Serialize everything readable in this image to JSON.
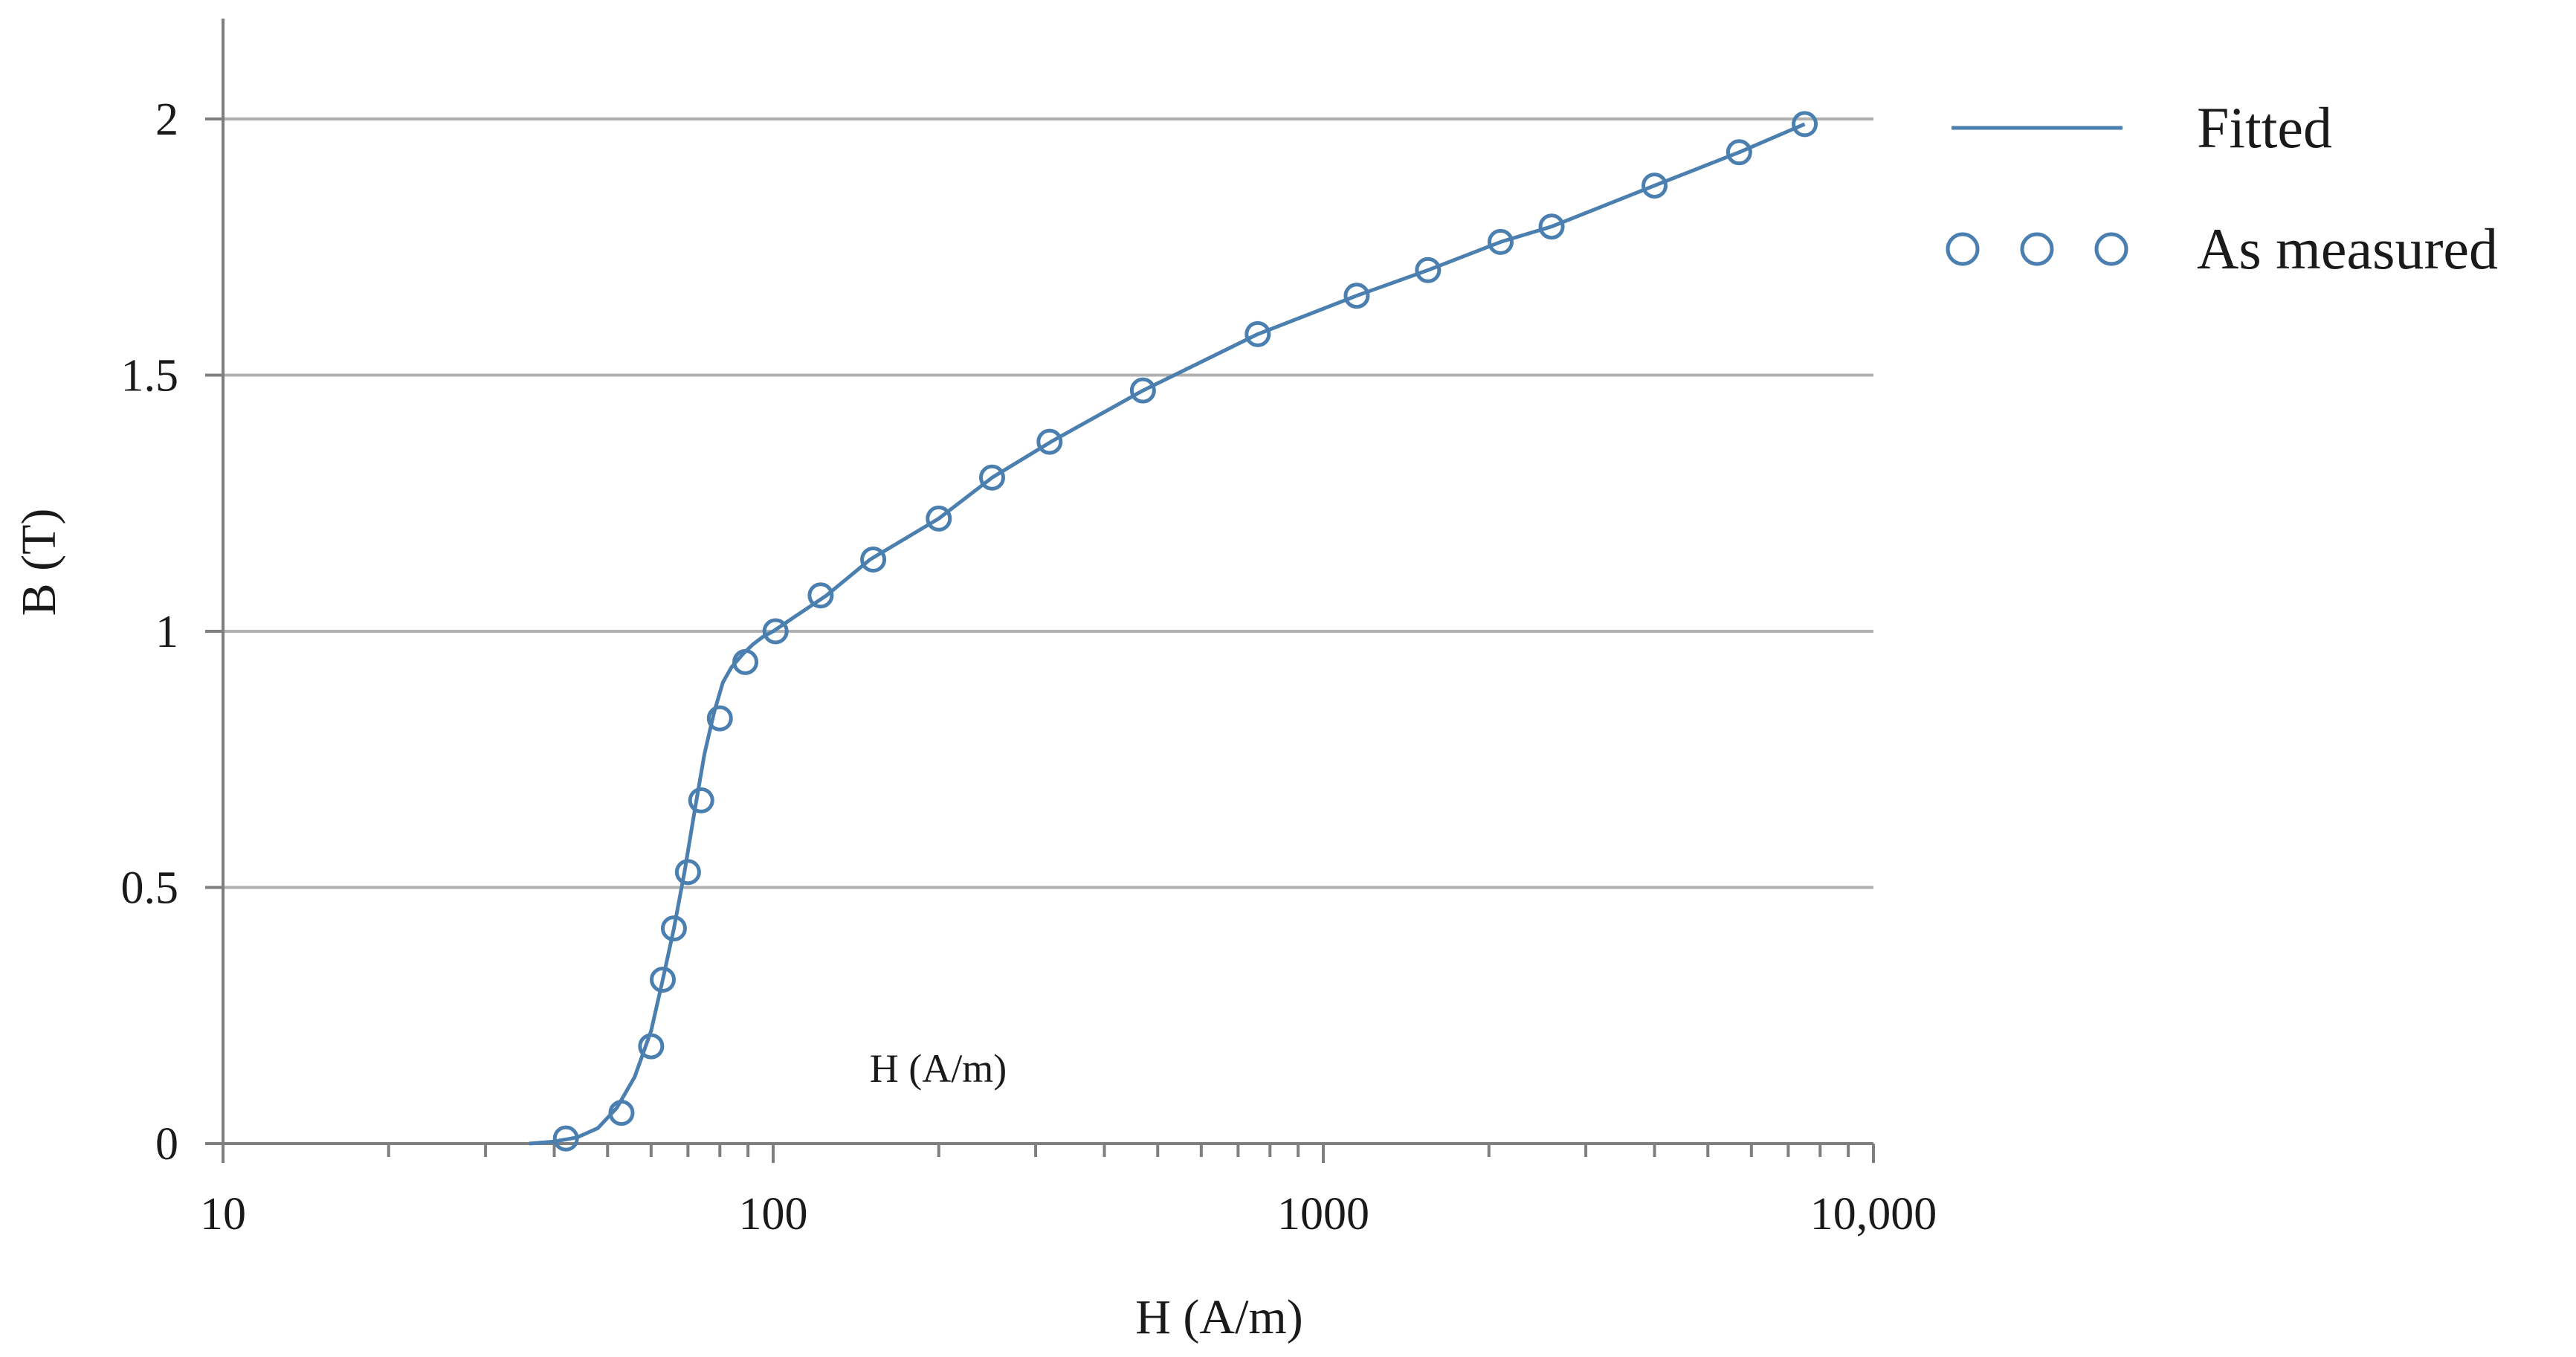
{
  "chart_data": {
    "type": "line",
    "xlabel": "H (A/m)",
    "ylabel": "B (T)",
    "x_scale": "log",
    "xlim": [
      10,
      10000
    ],
    "ylim": [
      0,
      2
    ],
    "x_ticks": [
      10,
      100,
      1000,
      10000
    ],
    "x_tick_labels": [
      "10",
      "100",
      "1000",
      "10,000"
    ],
    "y_ticks": [
      0,
      0.5,
      1,
      1.5,
      2
    ],
    "y_tick_labels": [
      "0",
      "0.5",
      "1",
      "1.5",
      "2"
    ],
    "grid": "horizontal",
    "legend_position": "right",
    "annotation": "H (A/m)",
    "colors": {
      "series": "#4a7fb0",
      "grid": "#b0b0b0",
      "axis": "#7f7f7f"
    },
    "series": [
      {
        "name": "Fitted",
        "style": "line",
        "x": [
          36,
          40,
          44,
          48,
          52,
          56,
          60,
          63,
          66,
          69,
          72,
          75,
          78,
          81,
          84,
          88,
          92,
          96,
          100,
          110,
          125,
          150,
          200,
          250,
          320,
          470,
          760,
          1150,
          1550,
          2100,
          2600,
          4000,
          5700,
          7500
        ],
        "y": [
          0,
          0.004,
          0.012,
          0.03,
          0.07,
          0.13,
          0.22,
          0.32,
          0.42,
          0.53,
          0.65,
          0.76,
          0.84,
          0.9,
          0.93,
          0.955,
          0.975,
          0.99,
          1.0,
          1.03,
          1.07,
          1.14,
          1.22,
          1.3,
          1.37,
          1.47,
          1.58,
          1.655,
          1.705,
          1.76,
          1.79,
          1.87,
          1.935,
          1.99
        ]
      },
      {
        "name": "As measured",
        "style": "markers",
        "x": [
          42,
          53,
          60,
          63,
          66,
          70,
          74,
          80,
          89,
          101,
          122,
          152,
          200,
          250,
          318,
          470,
          760,
          1150,
          1550,
          2100,
          2600,
          4000,
          5700,
          7500
        ],
        "y": [
          0.01,
          0.06,
          0.19,
          0.32,
          0.42,
          0.53,
          0.67,
          0.83,
          0.94,
          1.0,
          1.07,
          1.14,
          1.22,
          1.3,
          1.37,
          1.47,
          1.58,
          1.655,
          1.705,
          1.76,
          1.79,
          1.87,
          1.935,
          1.99
        ]
      }
    ]
  }
}
